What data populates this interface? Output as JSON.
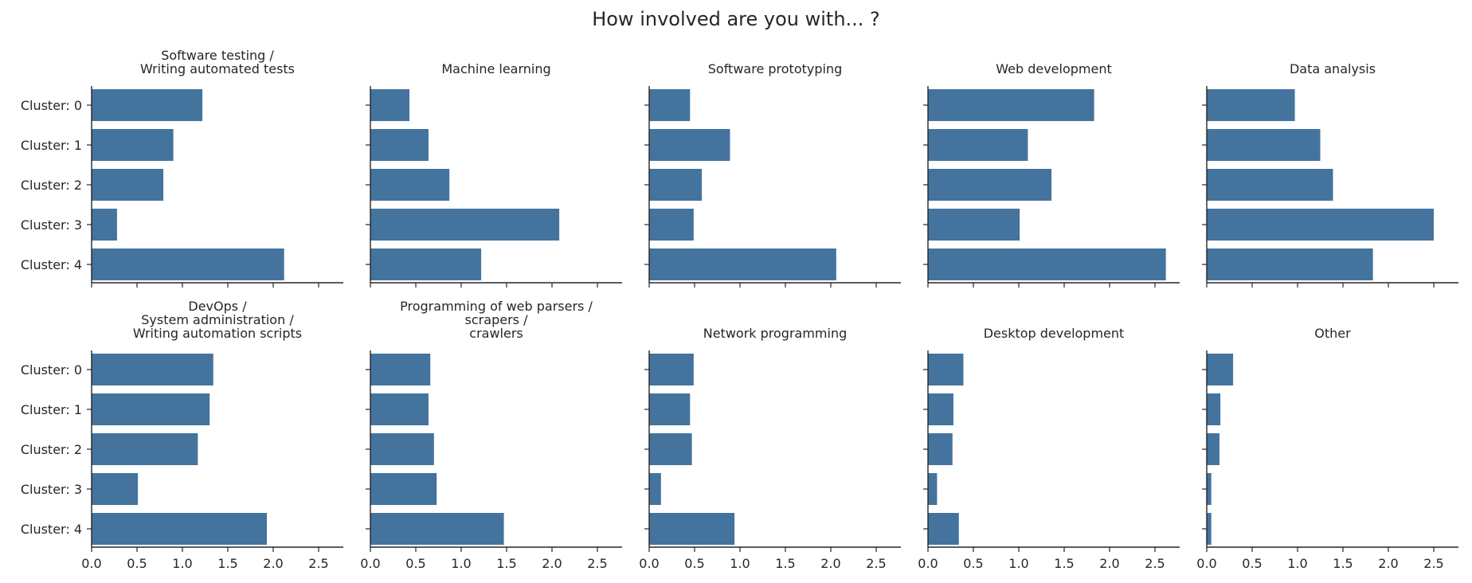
{
  "figure": {
    "title": "How involved are you with... ?"
  },
  "colors": {
    "bar": "#44739e",
    "axis": "#262626",
    "text": "#262626"
  },
  "chart_data": {
    "type": "bar",
    "orientation": "horizontal",
    "layout": "2 rows x 5 columns, shared axes",
    "categories": [
      "Cluster: 0",
      "Cluster: 1",
      "Cluster: 2",
      "Cluster: 3",
      "Cluster: 4"
    ],
    "x_ticks": [
      "0.0",
      "0.5",
      "1.0",
      "1.5",
      "2.0",
      "2.5"
    ],
    "xlim": [
      0,
      2.75
    ],
    "grid": false,
    "panels": [
      {
        "title": "Software testing /\nWriting automated tests",
        "values": [
          1.22,
          0.9,
          0.79,
          0.28,
          2.12
        ]
      },
      {
        "title": "Machine learning",
        "values": [
          0.43,
          0.64,
          0.87,
          2.08,
          1.22
        ]
      },
      {
        "title": "Software prototyping",
        "values": [
          0.45,
          0.89,
          0.58,
          0.49,
          2.06
        ]
      },
      {
        "title": "Web development",
        "values": [
          1.83,
          1.1,
          1.36,
          1.01,
          2.62
        ]
      },
      {
        "title": "Data analysis",
        "values": [
          0.97,
          1.25,
          1.39,
          2.5,
          1.83
        ]
      },
      {
        "title": "DevOps /\nSystem administration /\nWriting automation scripts",
        "values": [
          1.34,
          1.3,
          1.17,
          0.51,
          1.93
        ]
      },
      {
        "title": "Programming of web parsers /\nscrapers /\ncrawlers",
        "values": [
          0.66,
          0.64,
          0.7,
          0.73,
          1.47
        ]
      },
      {
        "title": "Network programming",
        "values": [
          0.49,
          0.45,
          0.47,
          0.13,
          0.94
        ]
      },
      {
        "title": "Desktop development",
        "values": [
          0.39,
          0.28,
          0.27,
          0.1,
          0.34
        ]
      },
      {
        "title": "Other",
        "values": [
          0.29,
          0.15,
          0.14,
          0.05,
          0.05
        ]
      }
    ]
  }
}
